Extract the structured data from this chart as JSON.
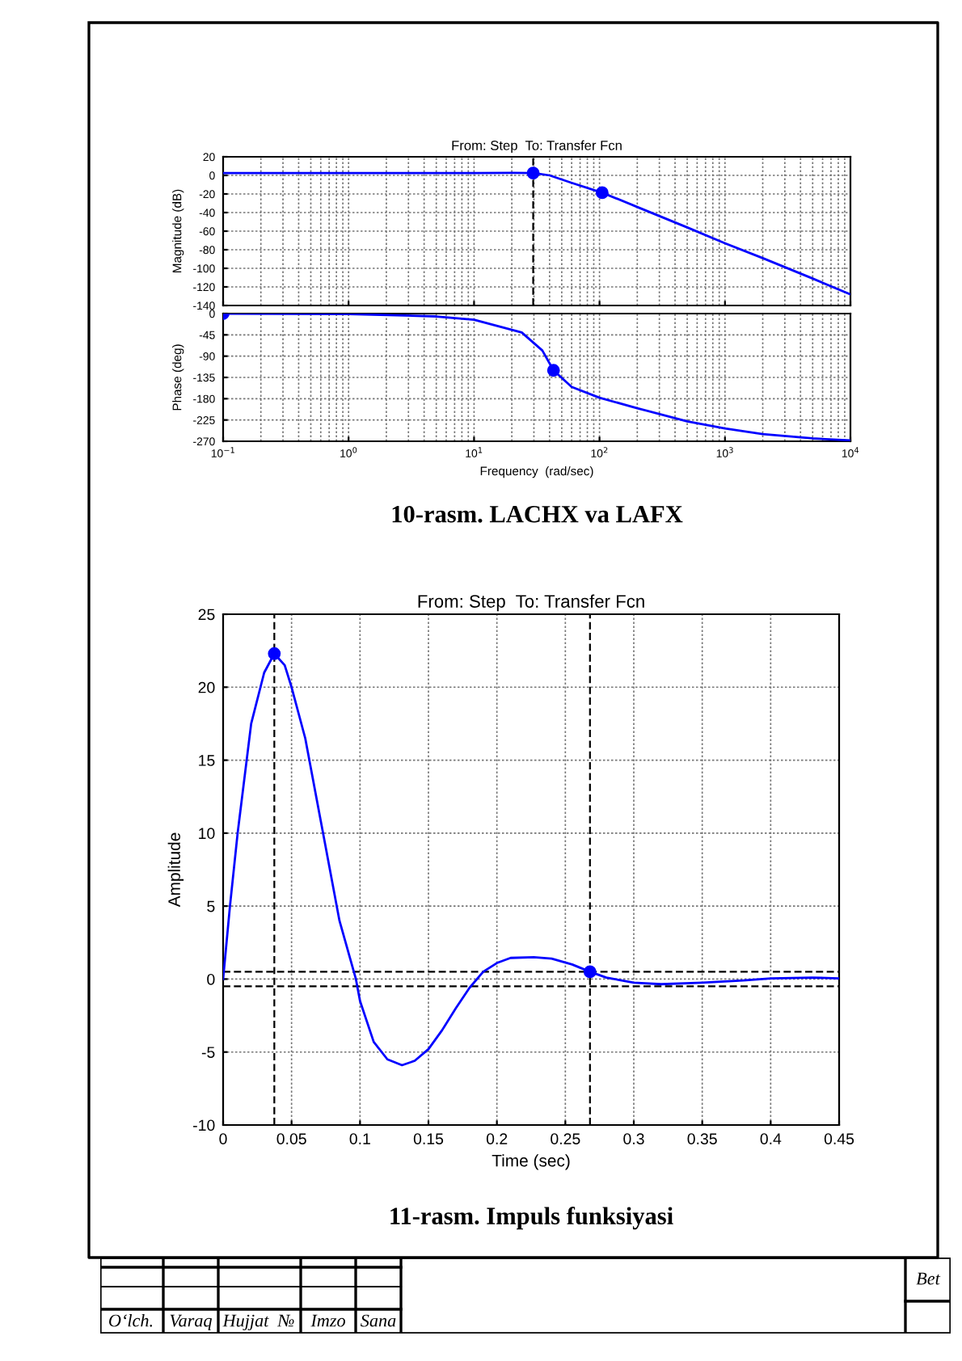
{
  "chart_data": [
    {
      "type": "line",
      "title": "From: Step  To: Transfer Fcn",
      "ylabel": "Magnitude (dB)",
      "log": "x",
      "xlim": [
        0.1,
        10000
      ],
      "xticks": [
        {
          "value": 0.1,
          "label": null
        },
        {
          "value": 1,
          "label": null
        },
        {
          "value": 10,
          "label": null
        },
        {
          "value": 100,
          "label": null
        },
        {
          "value": 1000,
          "label": null
        },
        {
          "value": 10000,
          "label": null
        }
      ],
      "ylim": [
        -140,
        20
      ],
      "yticks": [
        20,
        0,
        -20,
        -40,
        -60,
        -80,
        -100,
        -120,
        -140
      ],
      "tick_labels": "y",
      "grid": true,
      "series": [
        {
          "color": "#0000ff",
          "x": [
            0.1,
            1,
            10,
            20,
            30,
            40,
            60,
            107,
            200,
            500,
            1000,
            2000,
            5000,
            10000
          ],
          "values": [
            2.5,
            2.5,
            2.5,
            2.8,
            2.5,
            0,
            -8,
            -19,
            -34,
            -56,
            -73,
            -89,
            -111,
            -128
          ]
        },
        {
          "type": "scatter",
          "color": "#0000ff",
          "marker": "circle",
          "x": [
            29.6,
            105
          ],
          "values": [
            2.5,
            -18.6
          ]
        }
      ],
      "ref_lines": [
        {
          "axis": "x",
          "value": 29.6,
          "color": "#000000",
          "line_style": "dashed"
        }
      ]
    },
    {
      "type": "line",
      "ylabel": "Phase (deg)",
      "xlabel": "Frequency  (rad/sec)",
      "log": "x",
      "xlim": [
        0.1,
        10000
      ],
      "xticks": [
        {
          "value": 0.1,
          "label": "10$^{−1}$"
        },
        {
          "value": 1,
          "label": "10$^{0}$"
        },
        {
          "value": 10,
          "label": "10$^{1}$"
        },
        {
          "value": 100,
          "label": "10$^{2}$"
        },
        {
          "value": 1000,
          "label": "10$^{3}$"
        },
        {
          "value": 10000,
          "label": "10$^{4}$"
        }
      ],
      "ylim": [
        -270,
        0
      ],
      "yticks": [
        0,
        -45,
        -90,
        -135,
        -180,
        -225,
        -270
      ],
      "grid": true,
      "series": [
        {
          "color": "#0000ff",
          "x": [
            0.1,
            1,
            5,
            10,
            24,
            35,
            43,
            60,
            100,
            200,
            500,
            1000,
            2000,
            5000,
            10000
          ],
          "values": [
            0,
            -1,
            -6,
            -13,
            -40,
            -78,
            -120,
            -155,
            -178,
            -200,
            -228,
            -243,
            -255,
            -264,
            -268
          ]
        },
        {
          "type": "scatter",
          "color": "#0000ff",
          "marker": "circle",
          "x": [
            0.1,
            43
          ],
          "values": [
            0,
            -120
          ]
        }
      ],
      "annotations": [
        "10-rasm. LACHX va LAFX"
      ]
    },
    {
      "type": "line",
      "title": "From: Step  To: Transfer Fcn",
      "xlabel": "Time (sec)",
      "ylabel": "Amplitude",
      "xlim": [
        0,
        0.45
      ],
      "xticks": [
        0,
        0.05,
        0.1,
        0.15,
        0.2,
        0.25,
        0.3,
        0.35,
        0.4,
        0.45
      ],
      "ylim": [
        -10,
        25
      ],
      "yticks": [
        -10,
        -5,
        0,
        5,
        10,
        15,
        20,
        25
      ],
      "grid": true,
      "series": [
        {
          "color": "#0000ff",
          "x": [
            0,
            0.005,
            0.0106,
            0.0205,
            0.03,
            0.0374,
            0.045,
            0.05,
            0.06,
            0.073,
            0.085,
            0.097,
            0.1,
            0.11,
            0.12,
            0.1307,
            0.14,
            0.15,
            0.16,
            0.17,
            0.18,
            0.19,
            0.2,
            0.21,
            0.227,
            0.24,
            0.255,
            0.268,
            0.28,
            0.3,
            0.32,
            0.35,
            0.38,
            0.4,
            0.43,
            0.45
          ],
          "values": [
            0,
            5,
            10,
            17.5,
            21,
            22.3,
            21.5,
            20,
            16.5,
            10,
            4,
            0,
            -1.5,
            -4.3,
            -5.5,
            -5.9,
            -5.6,
            -4.8,
            -3.5,
            -2,
            -0.6,
            0.5,
            1.1,
            1.45,
            1.5,
            1.4,
            1,
            0.5,
            0.1,
            -0.25,
            -0.35,
            -0.25,
            -0.1,
            0.05,
            0.1,
            0.05
          ]
        },
        {
          "type": "scatter",
          "color": "#0000ff",
          "marker": "circle",
          "x": [
            0.0374,
            0.268
          ],
          "values": [
            22.3,
            0.5
          ]
        }
      ],
      "ref_lines": [
        {
          "axis": "x",
          "value": 0.0374,
          "color": "#000000",
          "line_style": "dashed"
        },
        {
          "axis": "x",
          "value": 0.268,
          "color": "#000000",
          "line_style": "dashed"
        },
        {
          "axis": "y",
          "value": 0.5,
          "color": "#000000",
          "line_style": "dashed"
        },
        {
          "axis": "y",
          "value": -0.5,
          "color": "#000000",
          "line_style": "dashed"
        }
      ],
      "annotations": [
        "11-rasm. Impuls funksiyasi"
      ]
    },
    {
      "type": "other",
      "annotations": [
        "O‘lch.",
        "Varaq",
        "Hujjat  №",
        "Imzo",
        "Sana",
        "Bet"
      ]
    }
  ]
}
